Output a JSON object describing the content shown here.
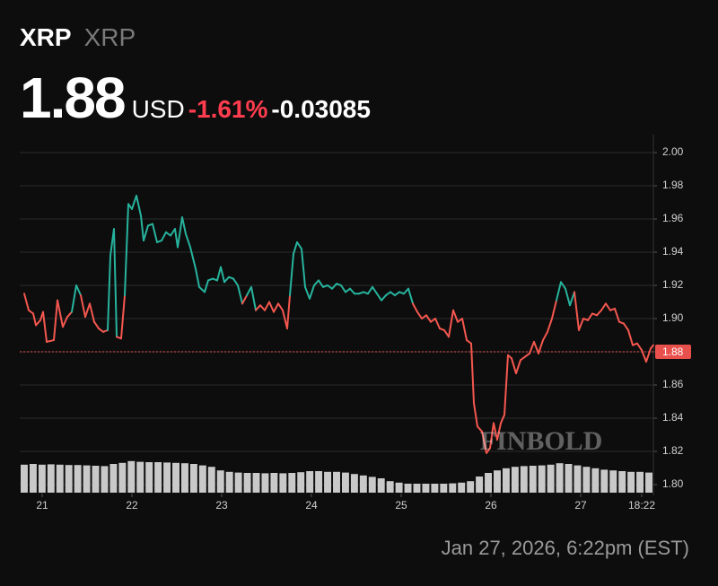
{
  "header": {
    "symbol": "XRP",
    "name": "XRP",
    "price": "1.88",
    "currency": "USD",
    "change_percent": "-1.61%",
    "change": "-0.03085",
    "timestamp": "Jan 27, 2026, 6:22pm (EST)",
    "watermark": "FINBOLD"
  },
  "chart_data": {
    "type": "line",
    "x": [
      20.8,
      20.85,
      20.9,
      20.93,
      20.98,
      21.01,
      21.05,
      21.13,
      21.17,
      21.23,
      21.28,
      21.33,
      21.38,
      21.43,
      21.48,
      21.53,
      21.58,
      21.63,
      21.68,
      21.73,
      21.76,
      21.8,
      21.83,
      21.88,
      21.92,
      21.96,
      22.0,
      22.05,
      22.1,
      22.13,
      22.18,
      22.23,
      22.28,
      22.33,
      22.38,
      22.43,
      22.48,
      22.51,
      22.56,
      22.6,
      22.65,
      22.71,
      22.75,
      22.81,
      22.85,
      22.9,
      22.95,
      22.99,
      23.03,
      23.08,
      23.13,
      23.18,
      23.23,
      23.28,
      23.33,
      23.38,
      23.43,
      23.48,
      23.53,
      23.58,
      23.63,
      23.68,
      23.73,
      23.76,
      23.8,
      23.84,
      23.89,
      23.93,
      23.98,
      24.03,
      24.08,
      24.13,
      24.18,
      24.23,
      24.28,
      24.33,
      24.38,
      24.43,
      24.48,
      24.53,
      24.58,
      24.63,
      24.68,
      24.73,
      24.78,
      24.83,
      24.88,
      24.93,
      24.98,
      25.03,
      25.08,
      25.13,
      25.18,
      25.23,
      25.28,
      25.33,
      25.38,
      25.43,
      25.48,
      25.53,
      25.58,
      25.63,
      25.68,
      25.73,
      25.78,
      25.81,
      25.85,
      25.9,
      25.95,
      25.99,
      26.03,
      26.07,
      26.11,
      26.15,
      26.19,
      26.23,
      26.28,
      26.33,
      26.38,
      26.43,
      26.48,
      26.53,
      26.58,
      26.63,
      26.68,
      26.73,
      26.78,
      26.83,
      26.88,
      26.93,
      26.98,
      27.03,
      27.08,
      27.13,
      27.18,
      27.23,
      27.28,
      27.33,
      27.38,
      27.43,
      27.48,
      27.53,
      27.58,
      27.63,
      27.68,
      27.73,
      27.78,
      27.81
    ],
    "series": [
      {
        "values": [
          1.915,
          1.905,
          1.903,
          1.896,
          1.899,
          1.904,
          1.886,
          1.887,
          1.911,
          1.895,
          1.901,
          1.904,
          1.92,
          1.914,
          1.901,
          1.909,
          1.898,
          1.894,
          1.892,
          1.893,
          1.938,
          1.954,
          1.889,
          1.888,
          1.914,
          1.969,
          1.966,
          1.974,
          1.962,
          1.947,
          1.956,
          1.957,
          1.946,
          1.947,
          1.952,
          1.95,
          1.954,
          1.943,
          1.961,
          1.951,
          1.943,
          1.93,
          1.919,
          1.916,
          1.923,
          1.924,
          1.923,
          1.931,
          1.922,
          1.925,
          1.924,
          1.92,
          1.909,
          1.914,
          1.919,
          1.905,
          1.908,
          1.905,
          1.91,
          1.904,
          1.909,
          1.905,
          1.894,
          1.914,
          1.939,
          1.946,
          1.942,
          1.919,
          1.912,
          1.92,
          1.923,
          1.919,
          1.92,
          1.918,
          1.921,
          1.92,
          1.916,
          1.918,
          1.915,
          1.915,
          1.916,
          1.915,
          1.919,
          1.915,
          1.911,
          1.914,
          1.916,
          1.914,
          1.916,
          1.915,
          1.918,
          1.909,
          1.904,
          1.9,
          1.902,
          1.898,
          1.9,
          1.894,
          1.893,
          1.889,
          1.905,
          1.898,
          1.9,
          1.887,
          1.885,
          1.849,
          1.835,
          1.832,
          1.819,
          1.822,
          1.837,
          1.827,
          1.837,
          1.842,
          1.878,
          1.876,
          1.867,
          1.875,
          1.877,
          1.879,
          1.886,
          1.879,
          1.887,
          1.892,
          1.9,
          1.911,
          1.922,
          1.918,
          1.908,
          1.916,
          1.893,
          1.9,
          1.899,
          1.903,
          1.902,
          1.905,
          1.909,
          1.905,
          1.906,
          1.898,
          1.897,
          1.893,
          1.884,
          1.885,
          1.881,
          1.874,
          1.882,
          1.884
        ]
      }
    ],
    "baseline": 1.912,
    "up_color": "#27b39d",
    "down_color": "#f4574f",
    "last_price": 1.88,
    "last_price_color": "#e8504c",
    "xlim": [
      20.75,
      27.81
    ],
    "xticks": [
      21,
      22,
      23,
      24,
      25,
      26,
      27,
      {
        "value": 27.68,
        "label": "18:22"
      }
    ],
    "ylim": [
      1.8,
      2.0
    ],
    "yticks": [
      {
        "value": 1.8,
        "label": "1.80"
      },
      {
        "value": 1.82,
        "label": "1.82"
      },
      {
        "value": 1.84,
        "label": "1.84"
      },
      {
        "value": 1.86,
        "label": "1.86"
      },
      {
        "value": 1.88,
        "label": "1.88"
      },
      {
        "value": 1.9,
        "label": "1.90"
      },
      {
        "value": 1.92,
        "label": "1.92"
      },
      {
        "value": 1.94,
        "label": "1.94"
      },
      {
        "value": 1.96,
        "label": "1.96"
      },
      {
        "value": 1.98,
        "label": "1.98"
      },
      {
        "value": 2.0,
        "label": "2.00"
      }
    ],
    "grid": true,
    "volume": {
      "color": "#c9c9c9",
      "ylim": [
        0,
        100
      ],
      "values": [
        78,
        80,
        78,
        79,
        78,
        77,
        77,
        76,
        75,
        74,
        80,
        83,
        88,
        86,
        85,
        85,
        84,
        83,
        82,
        80,
        76,
        72,
        62,
        58,
        56,
        55,
        55,
        54,
        55,
        54,
        55,
        57,
        60,
        60,
        58,
        58,
        56,
        52,
        48,
        44,
        40,
        32,
        28,
        25,
        25,
        25,
        25,
        25,
        26,
        28,
        32,
        45,
        55,
        62,
        68,
        72,
        74,
        75,
        76,
        78,
        82,
        80,
        76,
        72,
        68,
        64,
        62,
        60,
        58,
        58,
        56
      ]
    }
  }
}
